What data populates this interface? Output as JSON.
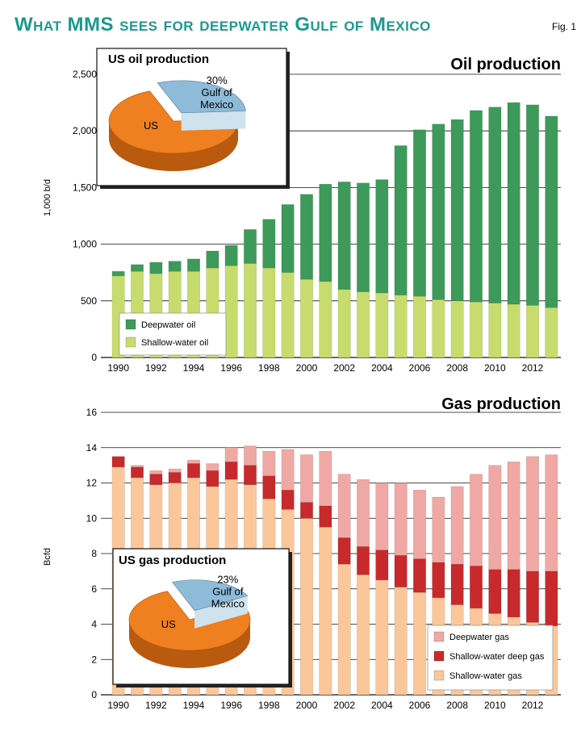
{
  "figure": {
    "title": "What MMS sees for deepwater Gulf of Mexico",
    "label": "Fig. 1"
  },
  "colors": {
    "title": "#1b9a8f",
    "deepwater_oil": "#3d9a5a",
    "shallow_oil": "#c8dc6e",
    "deepwater_gas": "#f0a8a4",
    "shallow_deep_gas": "#c8292c",
    "shallow_gas": "#fbc79a",
    "pie_us": "#ef7f1f",
    "pie_gom": "#8ebbd8"
  },
  "chart_data": [
    {
      "type": "bar",
      "stacked": true,
      "title": "Oil production",
      "ylabel": "1,000 b/d",
      "ylim": [
        0,
        2500
      ],
      "yticks": [
        "0",
        "500",
        "1,000",
        "1,500",
        "2,000",
        "2,500"
      ],
      "ytick_values": [
        0,
        500,
        1000,
        1500,
        2000,
        2500
      ],
      "x": [
        1990,
        1991,
        1992,
        1993,
        1994,
        1995,
        1996,
        1997,
        1998,
        1999,
        2000,
        2001,
        2002,
        2003,
        2004,
        2005,
        2006,
        2007,
        2008,
        2009,
        2010,
        2011,
        2012,
        2013
      ],
      "xtick_labels": [
        "1990",
        "1992",
        "1994",
        "1996",
        "1998",
        "2000",
        "2002",
        "2004",
        "2006",
        "2008",
        "2010",
        "2012"
      ],
      "grid": "horizontal",
      "legend": "bottom-left",
      "series": [
        {
          "name": "Shallow-water oil",
          "values": [
            720,
            760,
            740,
            760,
            760,
            790,
            810,
            830,
            790,
            750,
            690,
            670,
            600,
            580,
            570,
            550,
            540,
            510,
            500,
            490,
            480,
            470,
            460,
            440
          ]
        },
        {
          "name": "Deepwater oil",
          "values": [
            40,
            60,
            100,
            90,
            110,
            150,
            180,
            300,
            430,
            600,
            750,
            860,
            950,
            960,
            1000,
            1320,
            1470,
            1550,
            1600,
            1690,
            1730,
            1780,
            1770,
            1690
          ]
        }
      ],
      "inset": {
        "title": "US oil production",
        "slices": [
          {
            "label": "US",
            "value": 70
          },
          {
            "label": "Gulf of Mexico",
            "value": 30,
            "value_label": "30%"
          }
        ]
      }
    },
    {
      "type": "bar",
      "stacked": true,
      "title": "Gas production",
      "ylabel": "Bcfd",
      "ylim": [
        0,
        16
      ],
      "yticks": [
        "0",
        "2",
        "4",
        "6",
        "8",
        "10",
        "12",
        "14",
        "16"
      ],
      "ytick_values": [
        0,
        2,
        4,
        6,
        8,
        10,
        12,
        14,
        16
      ],
      "x": [
        1990,
        1991,
        1992,
        1993,
        1994,
        1995,
        1996,
        1997,
        1998,
        1999,
        2000,
        2001,
        2002,
        2003,
        2004,
        2005,
        2006,
        2007,
        2008,
        2009,
        2010,
        2011,
        2012,
        2013
      ],
      "xtick_labels": [
        "1990",
        "1992",
        "1994",
        "1996",
        "1998",
        "2000",
        "2002",
        "2004",
        "2006",
        "2008",
        "2010",
        "2012"
      ],
      "grid": "horizontal",
      "legend": "bottom-right",
      "series": [
        {
          "name": "Shallow-water gas",
          "values": [
            12.9,
            12.3,
            11.9,
            12.0,
            12.3,
            11.8,
            12.2,
            11.9,
            11.1,
            10.5,
            10.0,
            9.5,
            7.4,
            6.8,
            6.5,
            6.1,
            5.8,
            5.5,
            5.1,
            4.9,
            4.6,
            4.4,
            4.1,
            3.9
          ]
        },
        {
          "name": "Shallow-water deep gas",
          "values": [
            0.6,
            0.6,
            0.6,
            0.6,
            0.8,
            0.9,
            1.0,
            1.1,
            1.3,
            1.1,
            0.9,
            1.2,
            1.5,
            1.6,
            1.7,
            1.8,
            1.9,
            2.0,
            2.3,
            2.4,
            2.5,
            2.7,
            2.9,
            3.1
          ]
        },
        {
          "name": "Deepwater gas",
          "values": [
            0.0,
            0.1,
            0.2,
            0.2,
            0.2,
            0.4,
            0.8,
            1.1,
            1.4,
            2.3,
            2.7,
            3.1,
            3.6,
            3.8,
            3.8,
            4.1,
            3.9,
            3.7,
            4.4,
            5.2,
            5.9,
            6.1,
            6.5,
            6.6
          ]
        }
      ],
      "inset": {
        "title": "US gas production",
        "slices": [
          {
            "label": "US",
            "value": 77
          },
          {
            "label": "Gulf of Mexico",
            "value": 23,
            "value_label": "23%"
          }
        ]
      }
    }
  ]
}
